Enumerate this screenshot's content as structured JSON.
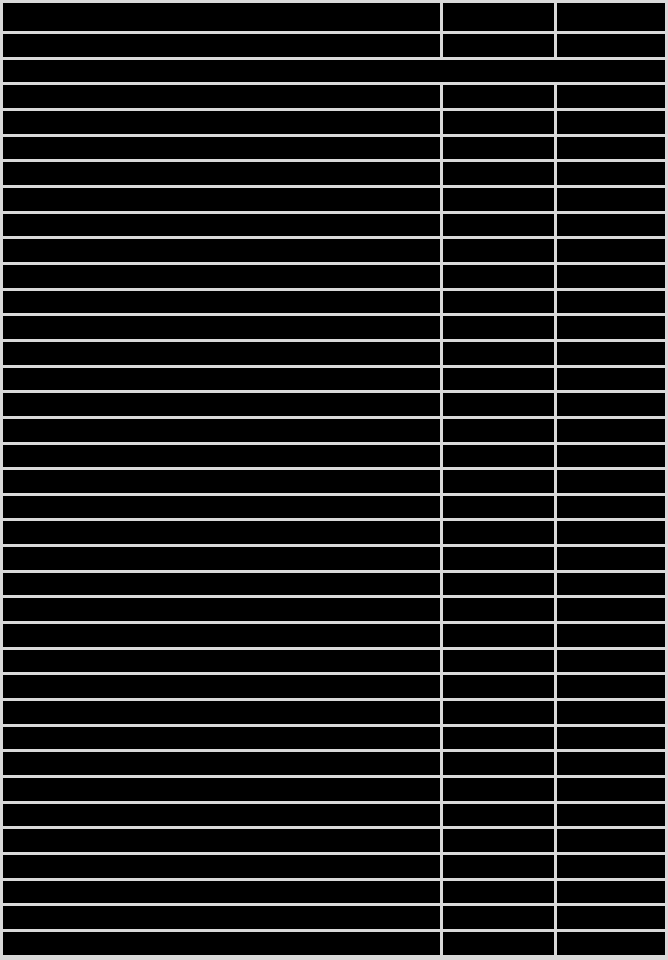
{
  "page": {
    "background_color": "#d9d9d9"
  },
  "table": {
    "rows": 37,
    "columns": 3,
    "header_row_index": 1,
    "full_width_rows": [
      3
    ],
    "cell_fill_color": "#000000",
    "grid_line_color": "#d9d9d9",
    "cell_text": ""
  }
}
